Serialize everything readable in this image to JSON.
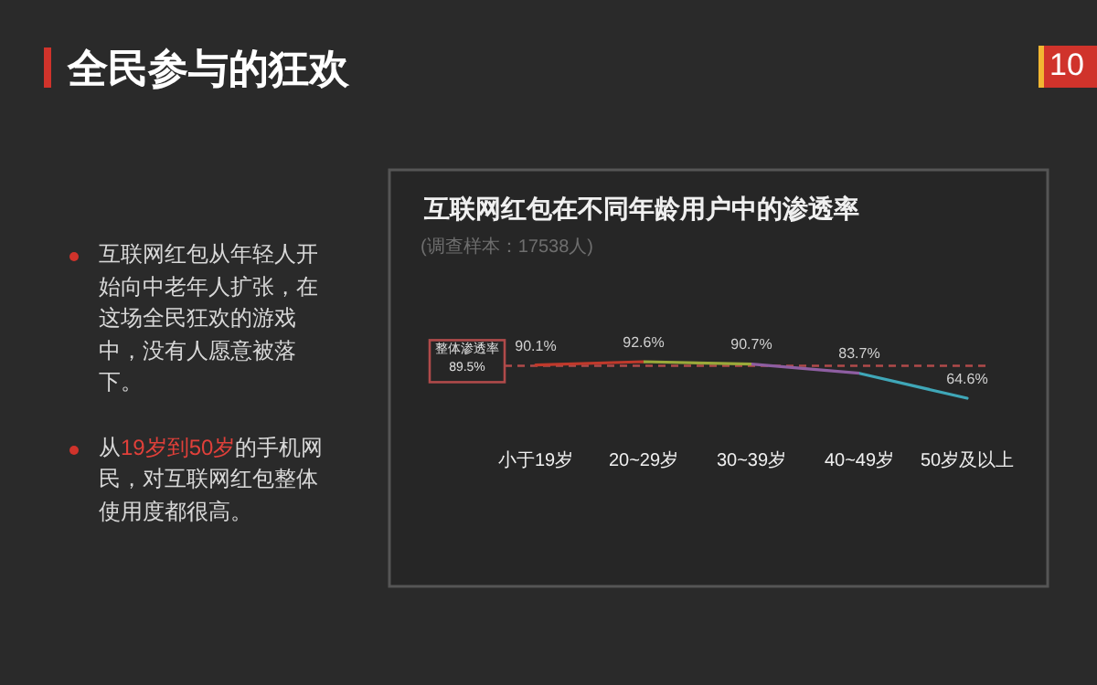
{
  "chart_data": {
    "type": "line",
    "title": "互联网红包在不同年龄用户中的渗透率",
    "subtitle": "(调查样本：17538人)",
    "categories": [
      "小于19岁",
      "20~29岁",
      "30~39岁",
      "40~49岁",
      "50岁及以上"
    ],
    "series": [
      {
        "colors": [
          "#c0392b",
          "#9aa83a",
          "#8e5ea2",
          "#3fa7b8",
          "#3fa7b8"
        ],
        "values": [
          90.1,
          92.6,
          90.7,
          83.7,
          64.6
        ],
        "value_labels": [
          "90.1%",
          "92.6%",
          "90.7%",
          "83.7%",
          "64.6%"
        ]
      }
    ],
    "ref_lines": [
      {
        "axis": "y",
        "value": 89.5,
        "label": "整体渗透率 89.5%",
        "color": "#b04a4a",
        "line_style": "dashed"
      }
    ],
    "annotations": [
      "全民参与的狂欢",
      "10",
      "互联网红包从年轻人开始向中老年人扩张，在这场全民狂欢的游戏中，没有人愿意被落下。",
      "从19岁到50岁的手机网民，对互联网红包整体使用度都很高。"
    ],
    "grid": false,
    "marker": "none",
    "line_style": "solid"
  }
}
